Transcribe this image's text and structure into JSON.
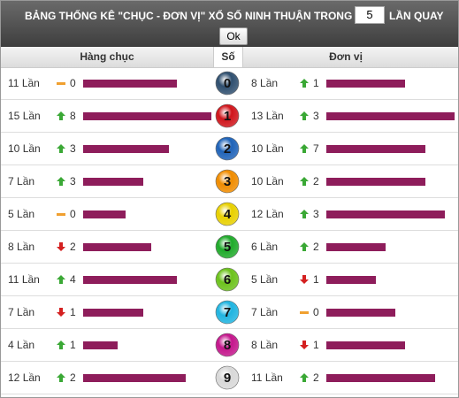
{
  "header": {
    "title_before": "BẢNG THỐNG KÊ \"CHỤC - ĐƠN VỊ\" XỔ SỐ NINH THUẬN TRONG",
    "draw_count": 5,
    "title_after": "LẦN QUAY",
    "button": "Ok"
  },
  "table": {
    "columns": [
      "Hàng chục",
      "Số",
      "Đơn vị"
    ],
    "times_word": "Lần",
    "bar_color": "#8e1d5b",
    "rows": [
      {
        "digit": 0,
        "ball_color": "#2f4f6f",
        "tens": {
          "count": 11,
          "trend": "same",
          "delta": 0
        },
        "units": {
          "count": 8,
          "trend": "up",
          "delta": 1
        }
      },
      {
        "digit": 1,
        "ball_color": "#d0151b",
        "tens": {
          "count": 15,
          "trend": "up",
          "delta": 8
        },
        "units": {
          "count": 13,
          "trend": "up",
          "delta": 3
        }
      },
      {
        "digit": 2,
        "ball_color": "#1f63b8",
        "tens": {
          "count": 10,
          "trend": "up",
          "delta": 3
        },
        "units": {
          "count": 10,
          "trend": "up",
          "delta": 7
        }
      },
      {
        "digit": 3,
        "ball_color": "#f08c00",
        "tens": {
          "count": 7,
          "trend": "up",
          "delta": 3
        },
        "units": {
          "count": 10,
          "trend": "up",
          "delta": 2
        }
      },
      {
        "digit": 4,
        "ball_color": "#e8d000",
        "tens": {
          "count": 5,
          "trend": "same",
          "delta": 0
        },
        "units": {
          "count": 12,
          "trend": "up",
          "delta": 3
        }
      },
      {
        "digit": 5,
        "ball_color": "#1faa2a",
        "tens": {
          "count": 8,
          "trend": "down",
          "delta": 2
        },
        "units": {
          "count": 6,
          "trend": "up",
          "delta": 2
        }
      },
      {
        "digit": 6,
        "ball_color": "#6cc21c",
        "tens": {
          "count": 11,
          "trend": "up",
          "delta": 4
        },
        "units": {
          "count": 5,
          "trend": "down",
          "delta": 1
        }
      },
      {
        "digit": 7,
        "ball_color": "#20b4e0",
        "tens": {
          "count": 7,
          "trend": "down",
          "delta": 1
        },
        "units": {
          "count": 7,
          "trend": "same",
          "delta": 0
        }
      },
      {
        "digit": 8,
        "ball_color": "#c4168c",
        "tens": {
          "count": 4,
          "trend": "up",
          "delta": 1
        },
        "units": {
          "count": 8,
          "trend": "down",
          "delta": 1
        }
      },
      {
        "digit": 9,
        "ball_color": "#d8d8d8",
        "tens": {
          "count": 12,
          "trend": "up",
          "delta": 2
        },
        "units": {
          "count": 11,
          "trend": "up",
          "delta": 2
        }
      }
    ]
  }
}
